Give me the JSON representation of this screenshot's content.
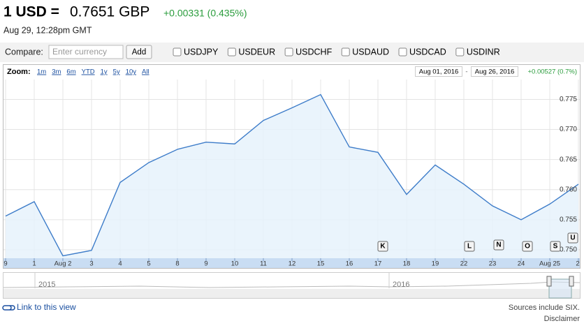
{
  "header": {
    "pair": "1 USD =",
    "rate": "0.7651 GBP",
    "change": "+0.00331 (0.435%)",
    "time": "Aug 29, 12:28pm GMT"
  },
  "compare": {
    "label": "Compare:",
    "placeholder": "Enter currency",
    "button": "Add",
    "options": [
      "USDJPY",
      "USDEUR",
      "USDCHF",
      "USDAUD",
      "USDCAD",
      "USDINR"
    ]
  },
  "toolbar": {
    "zoom_label": "Zoom:",
    "zoom": [
      "1m",
      "3m",
      "6m",
      "YTD",
      "1y",
      "5y",
      "10y",
      "All"
    ],
    "start": "Aug 01, 2016",
    "separator": "-",
    "end": "Aug 26, 2016",
    "change": "+0.00527 (0.7%)"
  },
  "chart_data": {
    "type": "line",
    "color": "#3d7cc9",
    "categories": [
      "9",
      "1",
      "Aug 2",
      "3",
      "4",
      "5",
      "8",
      "9",
      "10",
      "11",
      "12",
      "15",
      "16",
      "17",
      "18",
      "19",
      "22",
      "23",
      "24",
      "Aug 25",
      "2"
    ],
    "values": [
      0.7556,
      0.758,
      0.749,
      0.7499,
      0.7612,
      0.7645,
      0.7667,
      0.7679,
      0.7676,
      0.7715,
      0.7736,
      0.7758,
      0.7671,
      0.7662,
      0.7592,
      0.7641,
      0.7609,
      0.7573,
      0.755,
      0.7576,
      0.7609
    ],
    "ylim": [
      0.7486,
      0.7783
    ],
    "yticks": [
      {
        "value": 0.75,
        "label": "0.750"
      },
      0.755,
      {
        "value": 0.76,
        "label": "0.760"
      },
      0.765,
      {
        "value": 0.77,
        "label": "0.770"
      },
      0.775
    ],
    "grid": true,
    "flags": [
      "K",
      "L",
      "N",
      "O",
      "S",
      "U"
    ]
  },
  "navigator": {
    "labels": [
      "2015",
      "2016"
    ]
  },
  "footer": {
    "link": "Link to this view",
    "sources": "Sources include SIX.",
    "disclaimer": "Disclaimer"
  }
}
